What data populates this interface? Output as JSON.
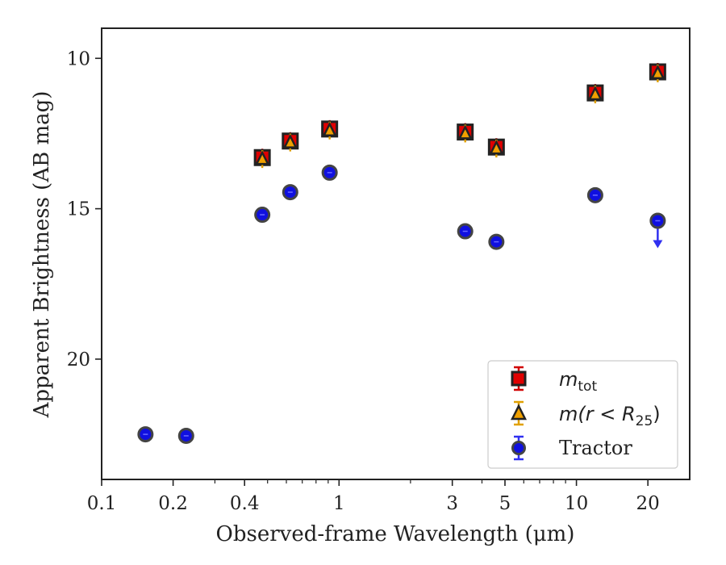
{
  "chart_data": {
    "type": "scatter",
    "title": "",
    "xlabel": "Observed-frame Wavelength (μm)",
    "ylabel": "Apparent Brightness (AB mag)",
    "xscale": "log",
    "yinverted": true,
    "xlim": [
      0.1,
      30
    ],
    "ylim": [
      24,
      9
    ],
    "xticks": [
      {
        "value": 0.1,
        "label": "0.1"
      },
      {
        "value": 0.2,
        "label": "0.2"
      },
      {
        "value": 0.4,
        "label": "0.4"
      },
      {
        "value": 1,
        "label": "1"
      },
      {
        "value": 3,
        "label": "3"
      },
      {
        "value": 5,
        "label": "5"
      },
      {
        "value": 10,
        "label": "10"
      },
      {
        "value": 20,
        "label": "20"
      }
    ],
    "yticks": [
      {
        "value": 10,
        "label": "10"
      },
      {
        "value": 15,
        "label": "15"
      },
      {
        "value": 20,
        "label": "20"
      }
    ],
    "grid": false,
    "legend_position": "bottom-right",
    "series": [
      {
        "key": "mtot",
        "name": "m_tot",
        "marker": "square",
        "color": "#e00000",
        "edge": "#222222",
        "points": [
          {
            "x": 0.475,
            "y": 13.3
          },
          {
            "x": 0.623,
            "y": 12.75
          },
          {
            "x": 0.913,
            "y": 12.35
          },
          {
            "x": 3.4,
            "y": 12.45
          },
          {
            "x": 4.6,
            "y": 12.95
          },
          {
            "x": 12.0,
            "y": 11.15
          },
          {
            "x": 22.0,
            "y": 10.45
          }
        ]
      },
      {
        "key": "mr25",
        "name": "m(r<R25)",
        "marker": "triangle",
        "color": "#f0a000",
        "edge": "#222222",
        "points": [
          {
            "x": 0.475,
            "y": 13.35
          },
          {
            "x": 0.623,
            "y": 12.8
          },
          {
            "x": 0.913,
            "y": 12.4
          },
          {
            "x": 3.4,
            "y": 12.5
          },
          {
            "x": 4.6,
            "y": 13.0
          },
          {
            "x": 12.0,
            "y": 11.2
          },
          {
            "x": 22.0,
            "y": 10.5
          }
        ]
      },
      {
        "key": "tractor",
        "name": "Tractor",
        "marker": "circle",
        "color": "#1010e0",
        "edge": "#444444",
        "points": [
          {
            "x": 0.153,
            "y": 22.5
          },
          {
            "x": 0.227,
            "y": 22.55
          },
          {
            "x": 0.475,
            "y": 15.2
          },
          {
            "x": 0.623,
            "y": 14.45
          },
          {
            "x": 0.913,
            "y": 13.8
          },
          {
            "x": 3.4,
            "y": 15.75
          },
          {
            "x": 4.6,
            "y": 16.1
          },
          {
            "x": 12.0,
            "y": 14.55
          },
          {
            "x": 22.0,
            "y": 15.4,
            "upper_limit": true
          }
        ]
      }
    ]
  },
  "legend": {
    "items": [
      {
        "series": "mtot",
        "base": "m",
        "sub": "tot",
        "text": ""
      },
      {
        "series": "mr25",
        "base": "m",
        "sub": "25",
        "text": "m(r < R",
        "close": ")"
      },
      {
        "series": "tractor",
        "text": "Tractor"
      }
    ]
  }
}
